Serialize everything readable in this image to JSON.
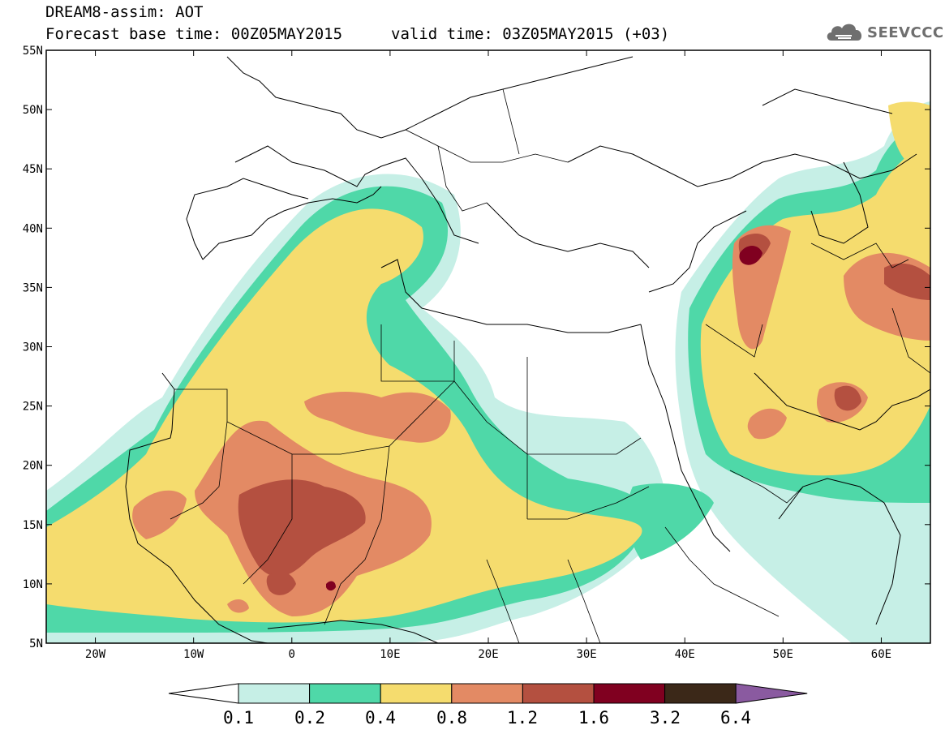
{
  "header": {
    "model_line": "DREAM8-assim: AOT",
    "base_time_line": "Forecast base time: 00Z05MAY2015",
    "valid_time_line": "valid time: 03Z05MAY2015 (+03)"
  },
  "logo": {
    "text": "SEEVCCC",
    "icon": "cloud-icon"
  },
  "map": {
    "projection": "lat-lon",
    "lon_range": [
      -25,
      65
    ],
    "lat_range": [
      5,
      55
    ],
    "lat_ticks": [
      "55N",
      "50N",
      "45N",
      "40N",
      "35N",
      "30N",
      "25N",
      "20N",
      "15N",
      "10N",
      "5N"
    ],
    "lon_ticks": [
      "20W",
      "10W",
      "0",
      "10E",
      "20E",
      "30E",
      "40E",
      "50E",
      "60E"
    ],
    "field": "Aerosol optical thickness (AOT)"
  },
  "colorbar": {
    "labels": [
      "0.1",
      "0.2",
      "0.4",
      "0.8",
      "1.2",
      "1.6",
      "3.2",
      "6.4"
    ],
    "colors": [
      "#ffffff",
      "#c6efe6",
      "#4fd8a8",
      "#f5dc6e",
      "#e38a64",
      "#b45040",
      "#800020",
      "#3b2818",
      "#8a5aa0"
    ]
  }
}
